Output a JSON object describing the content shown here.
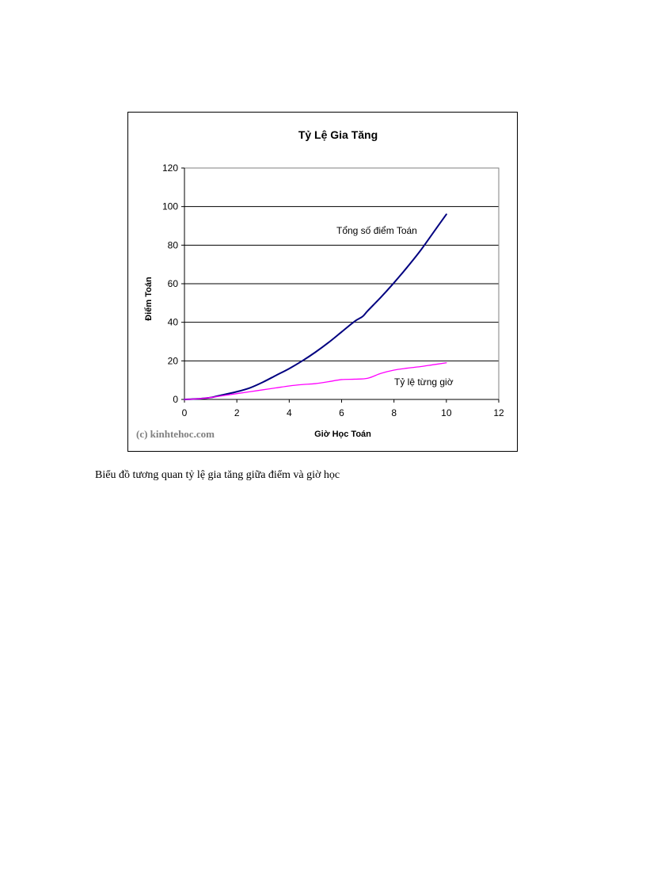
{
  "caption": "Biểu đồ tương quan tỷ lệ gia tăng giữa điểm và giờ học",
  "watermark": "(c) kinhtehoc.com",
  "colors": {
    "total": "#000080",
    "rate": "#ff00ff",
    "grid": "#000000",
    "axis": "#808080",
    "watermark": "#808080"
  },
  "chart_data": {
    "type": "line",
    "title": "Tỷ Lệ Gia Tăng",
    "xlabel": "Giờ Học Toán",
    "ylabel": "Điểm Toán",
    "xlim": [
      0,
      12
    ],
    "ylim": [
      0,
      120
    ],
    "xticks": [
      0,
      2,
      4,
      6,
      8,
      10,
      12
    ],
    "yticks": [
      0,
      20,
      40,
      60,
      80,
      100,
      120
    ],
    "grid": "horizontal",
    "legend": "none",
    "series": [
      {
        "key": "total",
        "name": "Tổng số điểm Toán",
        "x": [
          0,
          0.5,
          1,
          1.5,
          2,
          2.5,
          3,
          3.5,
          4,
          4.5,
          5,
          5.5,
          6,
          6.5,
          6.8,
          7,
          7.5,
          8,
          8.5,
          9,
          9.5,
          10
        ],
        "y": [
          0,
          0.3,
          1,
          2.5,
          4,
          6,
          9,
          12.5,
          16,
          20,
          24.5,
          29.5,
          35,
          40.5,
          43,
          46,
          53,
          60.5,
          68.5,
          77,
          86.5,
          96
        ]
      },
      {
        "key": "rate",
        "name": "Tỷ lệ từng giờ",
        "x": [
          0,
          0.5,
          1,
          1.5,
          2,
          2.5,
          3,
          3.5,
          4,
          4.5,
          5,
          5.5,
          6,
          6.5,
          7,
          7.5,
          8,
          8.5,
          9,
          9.5,
          10
        ],
        "y": [
          0,
          0.3,
          1,
          2,
          3,
          4,
          5,
          6,
          7,
          7.7,
          8.2,
          9.2,
          10.3,
          10.5,
          11,
          13.5,
          15.2,
          16.2,
          17,
          18,
          19
        ]
      }
    ]
  }
}
